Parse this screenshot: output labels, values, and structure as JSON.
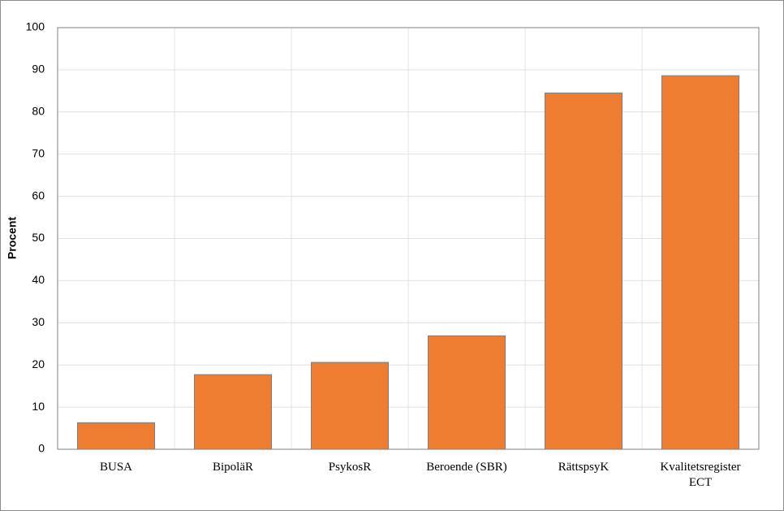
{
  "chart_data": {
    "type": "bar",
    "ylabel": "Procent",
    "categories": [
      "BUSA",
      "BipoläR",
      "PsykosR",
      "Beroende (SBR)",
      "RättspsyK",
      "Kvalitetsregister ECT"
    ],
    "values": [
      6.3,
      17.7,
      20.6,
      26.9,
      84.5,
      88.6
    ],
    "color": "#ed7d31",
    "ylim": [
      0,
      100
    ],
    "yticks": [
      0,
      10,
      20,
      30,
      40,
      50,
      60,
      70,
      80,
      90,
      100
    ],
    "grid": true
  }
}
